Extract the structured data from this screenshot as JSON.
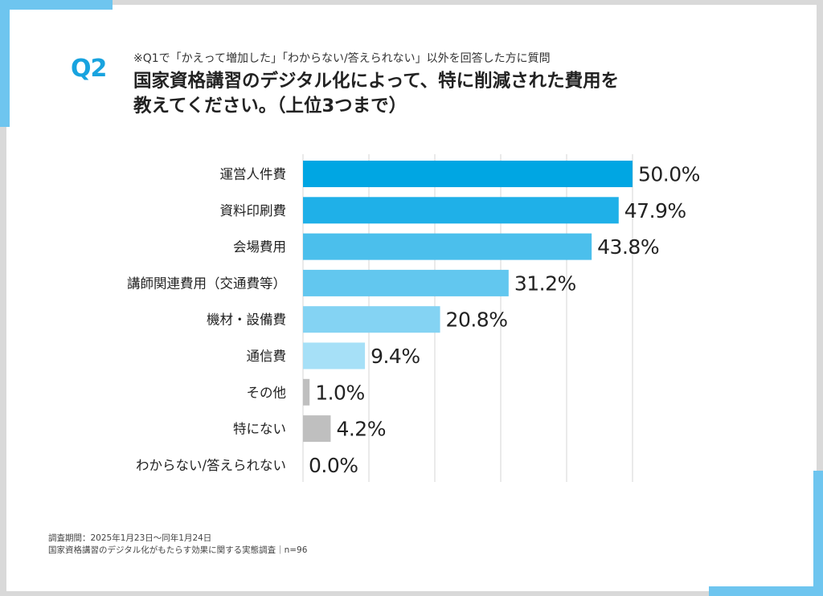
{
  "header": {
    "q_label": "Q2",
    "note": "※Q1で「かえって増加した」「わからない/答えられない」以外を回答した方に質問",
    "title_line1": "国家資格講習のデジタル化によって、特に削減された費用を",
    "title_line2": "教えてください。（上位3つまで）"
  },
  "footer": {
    "line1": "調査期間：2025年1月23日〜同年1月24日",
    "line2": "国家資格講習のデジタル化がもたらす効果に関する実態調査｜n=96"
  },
  "colors": {
    "background": "#d9d9d9",
    "accent": "#18a3df",
    "corner_accent": "#6ec5ef",
    "gray_bar": "#bfbfbf",
    "grid": "#d4d4d4"
  },
  "chart_data": {
    "type": "bar",
    "orientation": "horizontal",
    "categories": [
      "運営人件費",
      "資料印刷費",
      "会場費用",
      "講師関連費用（交通費等）",
      "機材・設備費",
      "通信費",
      "その他",
      "特にない",
      "わからない/答えられない"
    ],
    "values": [
      50.0,
      47.9,
      43.8,
      31.2,
      20.8,
      9.4,
      1.0,
      4.2,
      0.0
    ],
    "value_labels": [
      "50.0%",
      "47.9%",
      "43.8%",
      "31.2%",
      "20.8%",
      "9.4%",
      "1.0%",
      "4.2%",
      "0.0%"
    ],
    "bar_colors": [
      "#00a6e3",
      "#1fb0e8",
      "#4bbfec",
      "#62c7ef",
      "#84d3f3",
      "#a6e0f7",
      "#bfbfbf",
      "#bfbfbf",
      "#bfbfbf"
    ],
    "xlim": [
      0,
      50
    ],
    "grid": true,
    "title": "",
    "xlabel": "",
    "ylabel": ""
  }
}
